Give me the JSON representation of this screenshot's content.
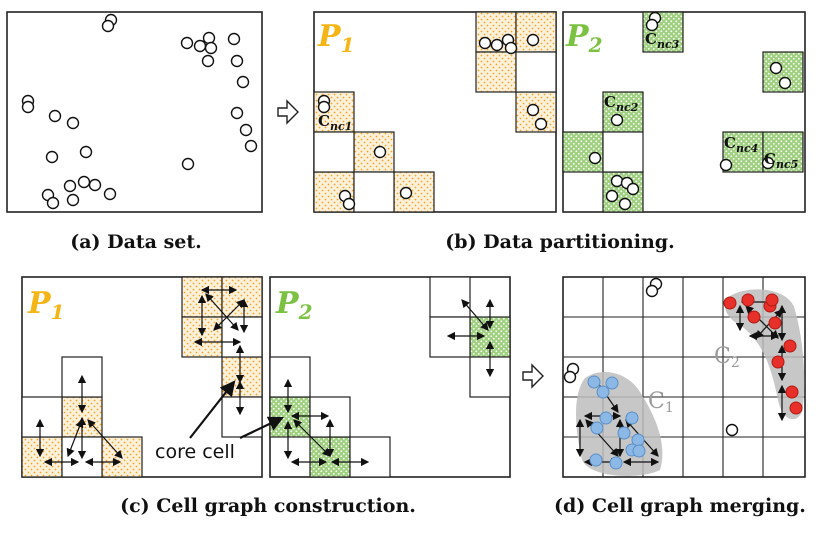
{
  "captions": {
    "a": "(a) Data set.",
    "b": "(b) Data partitioning.",
    "c": "(c) Cell graph construction.",
    "d": "(d) Cell graph merging."
  },
  "partitions": {
    "p1": {
      "letter": "P",
      "sub": "1",
      "color": "#f5b515"
    },
    "p2": {
      "letter": "P",
      "sub": "2",
      "color": "#7cc242"
    }
  },
  "cells": {
    "nc1": {
      "main": "C",
      "sub": "nc1"
    },
    "nc2": {
      "main": "C",
      "sub": "nc2"
    },
    "nc3": {
      "main": "C",
      "sub": "nc3"
    },
    "nc4": {
      "main": "C",
      "sub": "nc4"
    },
    "nc5": {
      "main": "C",
      "sub": "nc5"
    }
  },
  "annotations": {
    "core_cell": "core cell",
    "cluster1": {
      "main": "C",
      "sub": "1"
    },
    "cluster2": {
      "main": "C",
      "sub": "2"
    }
  },
  "colors": {
    "orange_fill": "#fdf1dc",
    "orange_dot": "#f5a623",
    "green_fill": "#b8dca0",
    "green_dot": "#ffffff",
    "blue_point": "#8cb8e6",
    "red_point": "#e8302a",
    "cluster_shade": "#bdbdbd"
  }
}
